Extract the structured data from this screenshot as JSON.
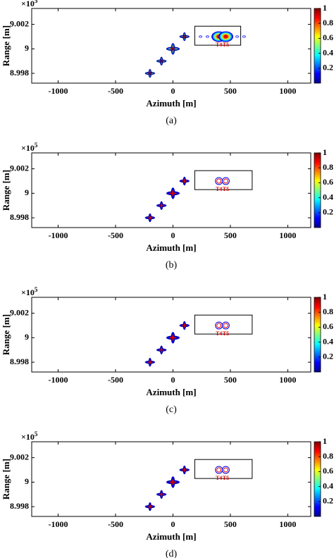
{
  "chart_data": [
    {
      "type": "contour",
      "caption": "(a)",
      "xlabel": "Azimuth [m]",
      "ylabel": "Range [m]",
      "y_multiplier": "×10",
      "y_multiplier_exp": "5",
      "xlim": [
        -1230,
        1200
      ],
      "xticks": [
        -1000,
        -500,
        0,
        500,
        1000
      ],
      "ylim": [
        899720,
        900330
      ],
      "yticks": [
        {
          "value": 899800,
          "label": "8.998"
        },
        {
          "value": 900000,
          "label": "9"
        },
        {
          "value": 900200,
          "label": "9.002"
        }
      ],
      "clim": [
        0,
        1
      ],
      "cticks": [
        0.2,
        0.4,
        0.6,
        0.8,
        1
      ],
      "x": [
        -200,
        -100,
        0,
        100,
        400,
        460
      ],
      "y": [
        899800,
        899900,
        900000,
        900100,
        900100,
        900100
      ],
      "point_labels": [
        null,
        null,
        null,
        null,
        "T4",
        "T5"
      ],
      "levels": [
        0.1,
        0.3,
        0.5,
        0.7,
        0.9
      ],
      "box": {
        "xlim": [
          190,
          590
        ],
        "ylim": [
          900030,
          900185
        ]
      }
    },
    {
      "type": "contour",
      "caption": "(b)",
      "xlabel": "Azimuth [m]",
      "ylabel": "Range [m]",
      "y_multiplier": "×10",
      "y_multiplier_exp": "5",
      "xlim": [
        -1230,
        1200
      ],
      "xticks": [
        -1000,
        -500,
        0,
        500,
        1000
      ],
      "ylim": [
        899720,
        900330
      ],
      "yticks": [
        {
          "value": 899800,
          "label": "8.998"
        },
        {
          "value": 900000,
          "label": "9"
        },
        {
          "value": 900200,
          "label": "9.002"
        }
      ],
      "clim": [
        0,
        1
      ],
      "cticks": [
        0.2,
        0.4,
        0.6,
        0.8,
        1
      ],
      "x": [
        -200,
        -100,
        0,
        100,
        400,
        460
      ],
      "y": [
        899800,
        899900,
        900000,
        900100,
        900100,
        900100
      ],
      "point_labels": [
        null,
        null,
        null,
        null,
        "T4",
        "T5"
      ],
      "levels": [
        0.1,
        0.9
      ],
      "box": {
        "xlim": [
          190,
          690
        ],
        "ylim": [
          900030,
          900185
        ]
      }
    },
    {
      "type": "contour",
      "caption": "(c)",
      "xlabel": "Azimuth [m]",
      "ylabel": "Range [m]",
      "y_multiplier": "×10",
      "y_multiplier_exp": "5",
      "xlim": [
        -1230,
        1200
      ],
      "xticks": [
        -1000,
        -500,
        0,
        500,
        1000
      ],
      "ylim": [
        899720,
        900330
      ],
      "yticks": [
        {
          "value": 899800,
          "label": "8.998"
        },
        {
          "value": 900000,
          "label": "9"
        },
        {
          "value": 900200,
          "label": "9.002"
        }
      ],
      "clim": [
        0,
        1
      ],
      "cticks": [
        0.2,
        0.4,
        0.6,
        0.8,
        1
      ],
      "x": [
        -200,
        -100,
        0,
        100,
        400,
        460
      ],
      "y": [
        899800,
        899900,
        900000,
        900100,
        900100,
        900100
      ],
      "point_labels": [
        null,
        null,
        null,
        null,
        "T4",
        "T5"
      ],
      "levels": [
        0.1,
        0.9
      ],
      "box": {
        "xlim": [
          190,
          690
        ],
        "ylim": [
          900030,
          900185
        ]
      }
    },
    {
      "type": "contour",
      "caption": "(d)",
      "xlabel": "Azimuth [m]",
      "ylabel": "Range [m]",
      "y_multiplier": "×10",
      "y_multiplier_exp": "5",
      "xlim": [
        -1230,
        1200
      ],
      "xticks": [
        -1000,
        -500,
        0,
        500,
        1000
      ],
      "ylim": [
        899720,
        900330
      ],
      "yticks": [
        {
          "value": 899800,
          "label": "8.998"
        },
        {
          "value": 900000,
          "label": "9"
        },
        {
          "value": 900200,
          "label": "9.002"
        }
      ],
      "clim": [
        0,
        1
      ],
      "cticks": [
        0.2,
        0.4,
        0.6,
        0.8,
        1
      ],
      "x": [
        -200,
        -100,
        0,
        100,
        400,
        460
      ],
      "y": [
        899800,
        899900,
        900000,
        900100,
        900100,
        900100
      ],
      "point_labels": [
        null,
        null,
        null,
        null,
        "T4",
        "T5"
      ],
      "levels": [
        0.1,
        0.9
      ],
      "box": {
        "xlim": [
          190,
          690
        ],
        "ylim": [
          900030,
          900185
        ]
      }
    }
  ]
}
